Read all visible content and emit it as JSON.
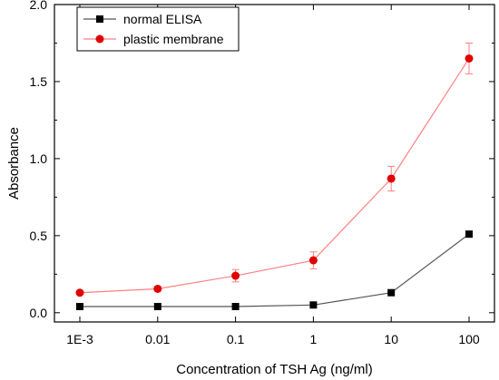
{
  "chart_data": {
    "type": "line",
    "xlabel": "Concentration of TSH Ag (ng/ml)",
    "ylabel": "Absorbance",
    "x_scale": "log",
    "x": [
      0.001,
      0.01,
      0.1,
      1,
      10,
      100
    ],
    "x_tick_labels": [
      "1E-3",
      "0.01",
      "0.1",
      "1",
      "10",
      "100"
    ],
    "ylim": [
      -0.06,
      2.0
    ],
    "y_ticks": [
      0.0,
      0.5,
      1.0,
      1.5,
      2.0
    ],
    "y_tick_labels": [
      "0.0",
      "0.5",
      "1.0",
      "1.5",
      "2.0"
    ],
    "legend_position": "top-left",
    "grid": false,
    "series": [
      {
        "name": "normal ELISA",
        "color": "#000000",
        "line_color": "#555555",
        "marker": "square",
        "values": [
          0.04,
          0.04,
          0.04,
          0.05,
          0.13,
          0.51
        ]
      },
      {
        "name": "plastic membrane",
        "color": "#e00000",
        "line_color": "#ff8080",
        "marker": "circle",
        "values": [
          0.13,
          0.155,
          0.24,
          0.34,
          0.87,
          1.65
        ],
        "error": [
          0.01,
          0.015,
          0.04,
          0.055,
          0.08,
          0.1
        ]
      }
    ]
  }
}
